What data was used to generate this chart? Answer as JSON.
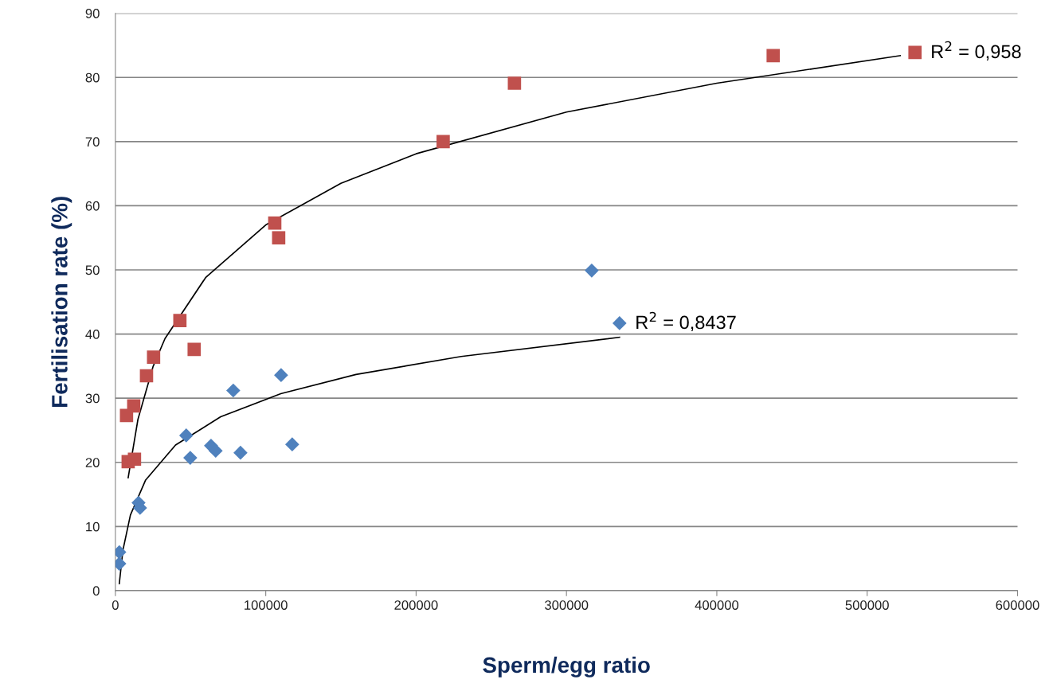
{
  "chart_data": {
    "type": "scatter",
    "xlabel": "Sperm/egg ratio",
    "ylabel": "Fertilisation rate (%)",
    "xlim": [
      0,
      600000
    ],
    "xticks": [
      0,
      100000,
      200000,
      300000,
      400000,
      500000,
      600000
    ],
    "ylim": [
      0,
      90
    ],
    "yticks": [
      0,
      10,
      20,
      30,
      40,
      50,
      60,
      70,
      80,
      90
    ],
    "grid": "y",
    "legend": false,
    "series": [
      {
        "marker": "square",
        "color": "#c0504d",
        "x": [
          7400,
          12200,
          8500,
          12700,
          20700,
          25400,
          42900,
          52400,
          106000,
          108600,
          218000,
          265400,
          437500,
          531800
        ],
        "values": [
          27.3,
          28.8,
          20.1,
          20.5,
          33.5,
          36.4,
          42.1,
          37.6,
          57.3,
          55.0,
          70.0,
          79.1,
          83.4,
          83.9
        ]
      },
      {
        "marker": "diamond",
        "color": "#4f81bd",
        "x": [
          2600,
          2600,
          15400,
          16400,
          47100,
          49800,
          63600,
          66700,
          83200,
          78400,
          110200,
          117600,
          316800,
          335300
        ],
        "values": [
          6.0,
          4.2,
          13.7,
          12.9,
          24.2,
          20.7,
          22.6,
          21.8,
          21.5,
          31.2,
          33.6,
          22.8,
          49.9,
          41.7
        ]
      },
      {
        "type": "line",
        "marker": "none",
        "line_style": "solid",
        "color": "#000000",
        "x": [
          8500,
          15000,
          25000,
          33000,
          60000,
          100000,
          150000,
          200000,
          300000,
          400000,
          522000
        ],
        "values": [
          17.6,
          26.7,
          34.9,
          39.3,
          48.8,
          57.0,
          63.5,
          68.1,
          74.6,
          79.1,
          83.4
        ]
      },
      {
        "type": "line",
        "marker": "none",
        "line_style": "solid",
        "color": "#000000",
        "x": [
          2600,
          5000,
          10000,
          20000,
          40000,
          70000,
          110000,
          160000,
          230000,
          335300
        ],
        "values": [
          1.1,
          6.3,
          11.8,
          17.2,
          22.7,
          27.1,
          30.7,
          33.7,
          36.5,
          39.5
        ]
      }
    ],
    "annotations": [
      {
        "text": "R$^{2}$ = 0,958",
        "x": 531800,
        "y": 83.9
      },
      {
        "text": "R$^{2}$ = 0,8437",
        "x": 335300,
        "y": 41.7
      }
    ]
  }
}
